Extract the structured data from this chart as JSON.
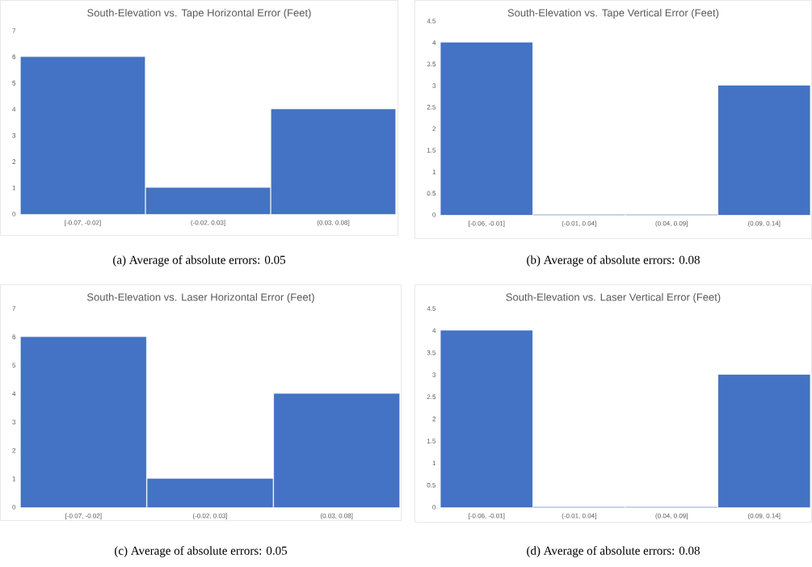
{
  "chart_data": [
    {
      "type": "bar",
      "title": "South-Elevation vs. Tape Horizontal Error (Feet)",
      "categories": [
        "[-0.07, -0.02]",
        "(-0.02, 0.03]",
        "(0.03, 0.08]"
      ],
      "values": [
        6,
        1,
        4
      ],
      "color": "#4472c4",
      "ylim": [
        0,
        7
      ],
      "yticks": [
        0,
        1,
        2,
        3,
        4,
        5,
        6,
        7
      ],
      "annotations": [
        "(a)  Average of absolute errors: 0.05"
      ]
    },
    {
      "type": "bar",
      "title": "South-Elevation vs. Tape Vertical Error (Feet)",
      "categories": [
        "[-0.06, -0.01]",
        "(-0.01, 0.04]",
        "(0.04, 0.09]",
        "(0.09, 0.14]"
      ],
      "values": [
        4,
        0,
        0,
        3
      ],
      "color": "#4472c4",
      "ylim": [
        0,
        4.5
      ],
      "yticks": [
        0,
        0.5,
        1,
        1.5,
        2,
        2.5,
        3,
        3.5,
        4,
        4.5
      ],
      "annotations": [
        "(b)  Average of absolute errors: 0.08"
      ]
    },
    {
      "type": "bar",
      "title": "South-Elevation vs. Laser Horizontal Error (Feet)",
      "categories": [
        "[-0.07, -0.02]",
        "(-0.02, 0.03]",
        "(0.03, 0.08]"
      ],
      "values": [
        6,
        1,
        4
      ],
      "color": "#4472c4",
      "ylim": [
        0,
        7
      ],
      "yticks": [
        0,
        1,
        2,
        3,
        4,
        5,
        6,
        7
      ],
      "annotations": [
        "(c)  Average of absolute errors: 0.05"
      ]
    },
    {
      "type": "bar",
      "title": "South-Elevation vs. Laser Vertical Error (Feet)",
      "categories": [
        "[-0.06, -0.01]",
        "(-0.01, 0.04]",
        "(0.04, 0.09]",
        "(0.09, 0.14]"
      ],
      "values": [
        4,
        0,
        0,
        3
      ],
      "color": "#4472c4",
      "ylim": [
        0,
        4.5
      ],
      "yticks": [
        0,
        0.5,
        1,
        1.5,
        2,
        2.5,
        3,
        3.5,
        4,
        4.5
      ],
      "annotations": [
        "(d)  Average of absolute errors: 0.08"
      ]
    }
  ]
}
